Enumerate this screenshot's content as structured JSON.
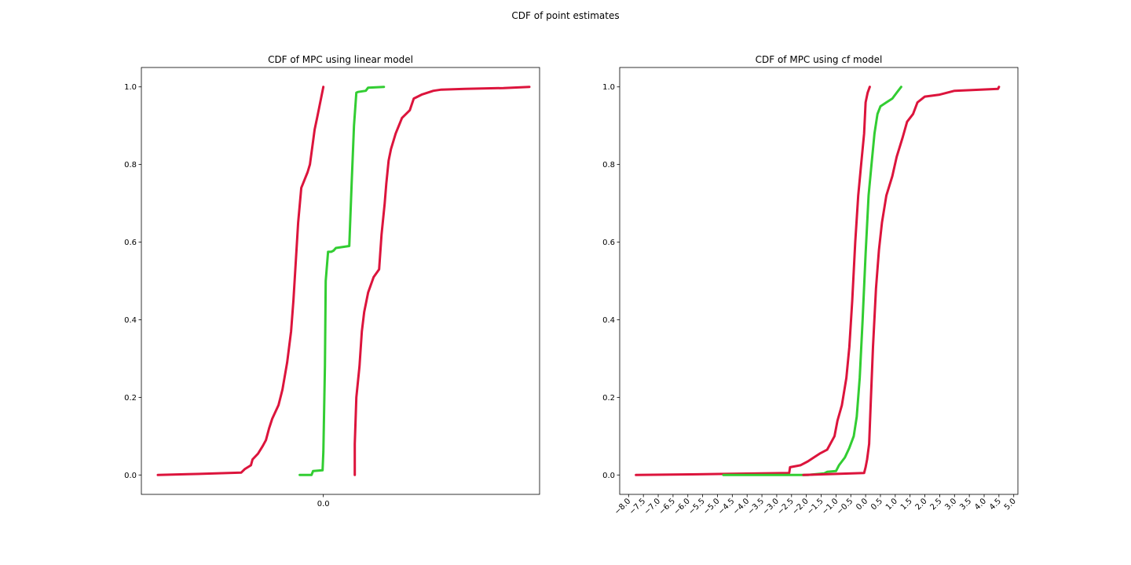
{
  "figure": {
    "title": "CDF of point estimates"
  },
  "chart_data": [
    {
      "type": "line",
      "title": "CDF of MPC using linear model",
      "xlabel": "",
      "ylabel": "",
      "xlim": [
        -1.1286,
        1.3414
      ],
      "ylim": [
        -0.05,
        1.05
      ],
      "x_ticks": [
        0.0
      ],
      "x_tick_labels": [
        "0.0"
      ],
      "y_ticks": [
        0.0,
        0.2,
        0.4,
        0.6,
        0.8,
        1.0
      ],
      "y_tick_labels": [
        "0.0",
        "0.2",
        "0.4",
        "0.6",
        "0.8",
        "1.0"
      ],
      "grid": false,
      "legend": "none",
      "series": [
        {
          "color": "#dc143c",
          "x": [
            -1.0263,
            -0.8414,
            -0.5098,
            -0.4878,
            -0.4488,
            -0.439,
            -0.4049,
            -0.3756,
            -0.3561,
            -0.3366,
            -0.3171,
            -0.278,
            -0.2537,
            -0.2244,
            -0.2,
            -0.1854,
            -0.1707,
            -0.1561,
            -0.1366,
            -0.1268,
            -0.1122,
            -0.0976,
            -0.0829,
            -0.0732,
            -0.0634,
            -0.0537,
            -0.039,
            -0.0244,
            -0.0146,
            0.0
          ],
          "y": [
            0.0,
            0.002,
            0.006,
            0.015,
            0.025,
            0.04,
            0.055,
            0.075,
            0.09,
            0.12,
            0.145,
            0.18,
            0.22,
            0.29,
            0.37,
            0.45,
            0.55,
            0.65,
            0.74,
            0.75,
            0.765,
            0.78,
            0.8,
            0.83,
            0.86,
            0.89,
            0.92,
            0.95,
            0.97,
            1.0
          ]
        },
        {
          "color": "#32cd32",
          "x": [
            -0.1463,
            -0.0732,
            -0.0634,
            -0.0049,
            0.0,
            0.0098,
            0.0146,
            0.0293,
            0.0488,
            0.0634,
            0.078,
            0.161,
            0.1756,
            0.1902,
            0.2049,
            0.2146,
            0.2634,
            0.278,
            0.3756
          ],
          "y": [
            0.0,
            0.0,
            0.01,
            0.012,
            0.06,
            0.28,
            0.5,
            0.575,
            0.575,
            0.578,
            0.585,
            0.59,
            0.75,
            0.9,
            0.985,
            0.987,
            0.99,
            0.998,
            1.0
          ]
        },
        {
          "color": "#dc143c",
          "x": [
            0.1951,
            0.1951,
            0.2049,
            0.2244,
            0.239,
            0.2537,
            0.278,
            0.3122,
            0.3463,
            0.361,
            0.3805,
            0.3902,
            0.4049,
            0.4195,
            0.4488,
            0.4878,
            0.5366,
            0.561,
            0.6098,
            0.6829,
            0.7317,
            0.878,
            1.1171,
            1.278
          ],
          "y": [
            0.0,
            0.08,
            0.2,
            0.28,
            0.37,
            0.42,
            0.47,
            0.51,
            0.53,
            0.62,
            0.7,
            0.75,
            0.81,
            0.84,
            0.88,
            0.92,
            0.94,
            0.97,
            0.98,
            0.99,
            0.993,
            0.995,
            0.997,
            1.0
          ]
        }
      ]
    },
    {
      "type": "line",
      "title": "CDF of MPC using cf model",
      "xlabel": "",
      "ylabel": "",
      "xlim": [
        -8.3,
        5.14
      ],
      "ylim": [
        -0.05,
        1.05
      ],
      "x_ticks": [
        -8.0,
        -7.5,
        -7.0,
        -6.5,
        -6.0,
        -5.5,
        -5.0,
        -4.5,
        -4.0,
        -3.5,
        -3.0,
        -2.5,
        -2.0,
        -1.5,
        -1.0,
        -0.5,
        0.0,
        0.5,
        1.0,
        1.5,
        2.0,
        2.5,
        3.0,
        3.5,
        4.0,
        4.5,
        5.0
      ],
      "x_tick_labels": [
        "−8.0",
        "−7.5",
        "−7.0",
        "−6.5",
        "−6.0",
        "−5.5",
        "−5.0",
        "−4.5",
        "−4.0",
        "−3.5",
        "−3.0",
        "−2.5",
        "−2.0",
        "−1.5",
        "−1.0",
        "−0.5",
        "0.0",
        "0.5",
        "1.0",
        "1.5",
        "2.0",
        "2.5",
        "3.0",
        "3.5",
        "4.0",
        "4.5",
        "5.0"
      ],
      "y_ticks": [
        0.0,
        0.2,
        0.4,
        0.6,
        0.8,
        1.0
      ],
      "y_tick_labels": [
        "0.0",
        "0.2",
        "0.4",
        "0.6",
        "0.8",
        "1.0"
      ],
      "grid": false,
      "legend": "none",
      "series": [
        {
          "color": "#dc143c",
          "x": [
            -7.75,
            -4.5,
            -2.58,
            -2.55,
            -2.2,
            -1.95,
            -1.75,
            -1.55,
            -1.3,
            -1.05,
            -0.95,
            -0.8,
            -0.65,
            -0.55,
            -0.45,
            -0.35,
            -0.25,
            -0.15,
            -0.05,
            0.0,
            0.07,
            0.14
          ],
          "y": [
            0.0,
            0.003,
            0.005,
            0.02,
            0.025,
            0.035,
            0.045,
            0.055,
            0.065,
            0.1,
            0.14,
            0.18,
            0.25,
            0.33,
            0.45,
            0.6,
            0.72,
            0.8,
            0.88,
            0.96,
            0.985,
            1.0
          ]
        },
        {
          "color": "#32cd32",
          "x": [
            -4.8,
            -1.95,
            -1.4,
            -1.3,
            -1.0,
            -0.9,
            -0.7,
            -0.55,
            -0.4,
            -0.3,
            -0.2,
            -0.1,
            0.0,
            0.1,
            0.2,
            0.3,
            0.4,
            0.5,
            0.7,
            0.9,
            1.05,
            1.2
          ],
          "y": [
            0.0,
            0.0,
            0.004,
            0.008,
            0.01,
            0.025,
            0.045,
            0.07,
            0.1,
            0.15,
            0.25,
            0.4,
            0.57,
            0.72,
            0.8,
            0.88,
            0.93,
            0.95,
            0.96,
            0.97,
            0.985,
            1.0
          ]
        },
        {
          "color": "#dc143c",
          "x": [
            -2.1,
            -0.05,
            0.0,
            0.05,
            0.12,
            0.18,
            0.25,
            0.35,
            0.45,
            0.55,
            0.7,
            0.9,
            1.05,
            1.25,
            1.4,
            1.6,
            1.75,
            2.0,
            2.5,
            3.0,
            4.47,
            4.5
          ],
          "y": [
            0.0,
            0.005,
            0.02,
            0.04,
            0.08,
            0.2,
            0.33,
            0.48,
            0.58,
            0.65,
            0.72,
            0.77,
            0.82,
            0.87,
            0.91,
            0.93,
            0.96,
            0.975,
            0.98,
            0.99,
            0.995,
            1.0
          ]
        }
      ]
    }
  ]
}
